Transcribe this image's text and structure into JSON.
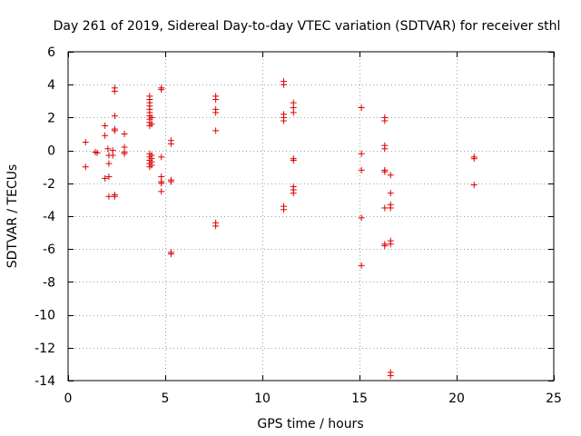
{
  "chart_data": {
    "type": "scatter",
    "title": "Day 261 of 2019, Sidereal Day-to-day VTEC variation (SDTVAR) for receiver sthl",
    "xlabel": "GPS time / hours",
    "ylabel": "SDTVAR / TECUs",
    "xlim": [
      0,
      25
    ],
    "ylim": [
      -14,
      6
    ],
    "xticks": [
      0,
      5,
      10,
      15,
      20,
      25
    ],
    "yticks": [
      6,
      4,
      2,
      0,
      -2,
      -4,
      -6,
      -8,
      -10,
      -12,
      -14
    ],
    "xtick_labels": [
      "0",
      "5",
      "10",
      "15",
      "20",
      "25"
    ],
    "ytick_labels": [
      "6",
      "4",
      "2",
      "0",
      "-2",
      "-4",
      "-6",
      "-8",
      "-10",
      "-12",
      "-14"
    ],
    "grid": true,
    "marker": "+",
    "color": "#dd0000",
    "series": [
      {
        "name": "sthl",
        "points": [
          [
            0.9,
            0.5
          ],
          [
            0.9,
            -1.0
          ],
          [
            1.4,
            -0.1
          ],
          [
            1.5,
            -0.15
          ],
          [
            1.9,
            1.5
          ],
          [
            1.9,
            0.9
          ],
          [
            1.9,
            -1.7
          ],
          [
            2.05,
            0.1
          ],
          [
            2.1,
            -0.3
          ],
          [
            2.1,
            -0.8
          ],
          [
            2.1,
            -1.6
          ],
          [
            2.1,
            -2.8
          ],
          [
            2.3,
            0.0
          ],
          [
            2.3,
            -0.3
          ],
          [
            2.4,
            3.8
          ],
          [
            2.4,
            3.6
          ],
          [
            2.4,
            2.1
          ],
          [
            2.4,
            1.3
          ],
          [
            2.4,
            1.2
          ],
          [
            2.4,
            -2.7
          ],
          [
            2.4,
            -2.8
          ],
          [
            2.9,
            1.0
          ],
          [
            2.9,
            0.2
          ],
          [
            2.9,
            -0.1
          ],
          [
            2.9,
            -0.2
          ],
          [
            4.2,
            3.3
          ],
          [
            4.2,
            3.1
          ],
          [
            4.2,
            2.9
          ],
          [
            4.2,
            2.7
          ],
          [
            4.2,
            2.5
          ],
          [
            4.2,
            2.3
          ],
          [
            4.2,
            2.1
          ],
          [
            4.2,
            1.9
          ],
          [
            4.2,
            1.7
          ],
          [
            4.2,
            1.5
          ],
          [
            4.2,
            -0.2
          ],
          [
            4.2,
            -0.4
          ],
          [
            4.2,
            -0.6
          ],
          [
            4.2,
            -0.8
          ],
          [
            4.2,
            -1.0
          ],
          [
            4.3,
            2.0
          ],
          [
            4.3,
            1.6
          ],
          [
            4.3,
            -0.3
          ],
          [
            4.3,
            -0.5
          ],
          [
            4.3,
            -0.7
          ],
          [
            4.3,
            -0.9
          ],
          [
            4.8,
            3.8
          ],
          [
            4.8,
            3.7
          ],
          [
            4.8,
            -0.4
          ],
          [
            4.8,
            -1.6
          ],
          [
            4.8,
            -1.9
          ],
          [
            4.8,
            -2.0
          ],
          [
            4.8,
            -2.5
          ],
          [
            5.3,
            0.6
          ],
          [
            5.3,
            0.4
          ],
          [
            5.3,
            -1.8
          ],
          [
            5.3,
            -1.9
          ],
          [
            5.3,
            -6.2
          ],
          [
            5.3,
            -6.3
          ],
          [
            7.6,
            3.3
          ],
          [
            7.6,
            3.1
          ],
          [
            7.6,
            2.5
          ],
          [
            7.6,
            2.3
          ],
          [
            7.6,
            1.2
          ],
          [
            7.6,
            -4.4
          ],
          [
            7.6,
            -4.6
          ],
          [
            11.1,
            4.2
          ],
          [
            11.1,
            4.0
          ],
          [
            11.1,
            2.2
          ],
          [
            11.1,
            2.0
          ],
          [
            11.1,
            1.8
          ],
          [
            11.1,
            -3.4
          ],
          [
            11.1,
            -3.6
          ],
          [
            11.6,
            2.9
          ],
          [
            11.6,
            2.6
          ],
          [
            11.6,
            2.3
          ],
          [
            11.6,
            -0.5
          ],
          [
            11.6,
            -0.6
          ],
          [
            11.6,
            -2.2
          ],
          [
            11.6,
            -2.4
          ],
          [
            11.6,
            -2.6
          ],
          [
            15.1,
            2.6
          ],
          [
            15.1,
            -0.2
          ],
          [
            15.1,
            -1.2
          ],
          [
            15.1,
            -4.1
          ],
          [
            15.1,
            -7.0
          ],
          [
            16.3,
            2.0
          ],
          [
            16.3,
            1.8
          ],
          [
            16.3,
            0.3
          ],
          [
            16.3,
            0.1
          ],
          [
            16.3,
            -1.2
          ],
          [
            16.3,
            -1.3
          ],
          [
            16.3,
            -3.5
          ],
          [
            16.3,
            -5.7
          ],
          [
            16.3,
            -5.8
          ],
          [
            16.6,
            -1.5
          ],
          [
            16.6,
            -2.6
          ],
          [
            16.6,
            -3.3
          ],
          [
            16.6,
            -3.5
          ],
          [
            16.6,
            -5.5
          ],
          [
            16.6,
            -5.7
          ],
          [
            16.6,
            -13.5
          ],
          [
            16.6,
            -13.7
          ],
          [
            20.9,
            -0.4
          ],
          [
            20.9,
            -0.5
          ],
          [
            20.9,
            -2.1
          ]
        ]
      }
    ]
  }
}
